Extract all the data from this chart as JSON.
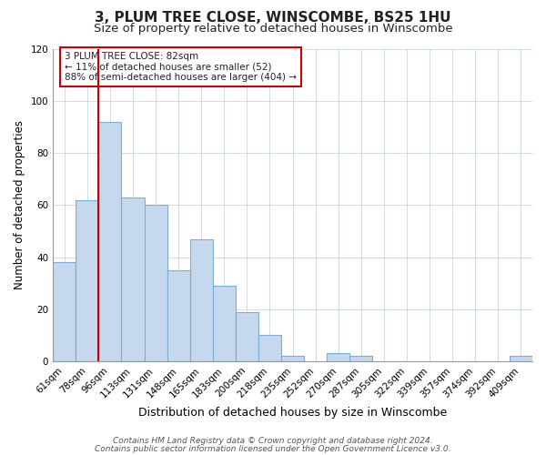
{
  "title": "3, PLUM TREE CLOSE, WINSCOMBE, BS25 1HU",
  "subtitle": "Size of property relative to detached houses in Winscombe",
  "xlabel": "Distribution of detached houses by size in Winscombe",
  "ylabel": "Number of detached properties",
  "bar_labels": [
    "61sqm",
    "78sqm",
    "96sqm",
    "113sqm",
    "131sqm",
    "148sqm",
    "165sqm",
    "183sqm",
    "200sqm",
    "218sqm",
    "235sqm",
    "252sqm",
    "270sqm",
    "287sqm",
    "305sqm",
    "322sqm",
    "339sqm",
    "357sqm",
    "374sqm",
    "392sqm",
    "409sqm"
  ],
  "bar_heights": [
    38,
    62,
    92,
    63,
    60,
    35,
    47,
    29,
    19,
    10,
    2,
    0,
    3,
    2,
    0,
    0,
    0,
    0,
    0,
    0,
    2
  ],
  "bar_color": "#c5d8ee",
  "bar_edge_color": "#7aafd4",
  "vline_x": 1.5,
  "vline_color": "#cc0000",
  "annotation_text": "3 PLUM TREE CLOSE: 82sqm\n← 11% of detached houses are smaller (52)\n88% of semi-detached houses are larger (404) →",
  "annotation_box_color": "#ffffff",
  "annotation_box_edge": "#cc0000",
  "ylim": [
    0,
    120
  ],
  "yticks": [
    0,
    20,
    40,
    60,
    80,
    100,
    120
  ],
  "footer_line1": "Contains HM Land Registry data © Crown copyright and database right 2024.",
  "footer_line2": "Contains public sector information licensed under the Open Government Licence v3.0.",
  "bg_color": "#ffffff",
  "plot_bg_color": "#ffffff",
  "title_fontsize": 11,
  "subtitle_fontsize": 9.5,
  "xlabel_fontsize": 9,
  "ylabel_fontsize": 8.5,
  "tick_fontsize": 7.5,
  "footer_fontsize": 6.5,
  "grid_color": "#c8d8e8"
}
